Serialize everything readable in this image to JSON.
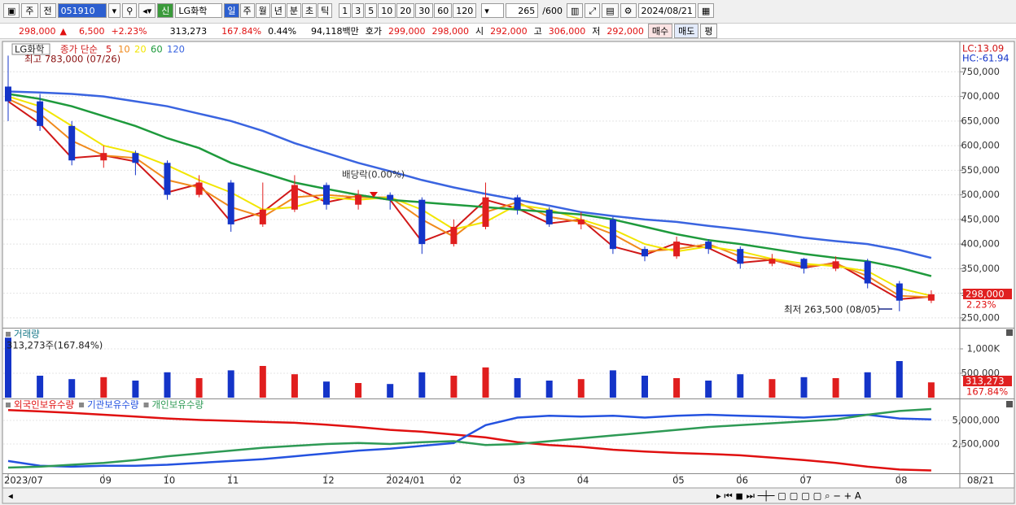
{
  "toolbar": {
    "market": "주",
    "prev": "전",
    "code": "051910",
    "name": "LG화학",
    "badge": "신",
    "periods": [
      "일",
      "주",
      "월",
      "년",
      "분",
      "초",
      "틱"
    ],
    "intervals": [
      "1",
      "3",
      "5",
      "10",
      "20",
      "30",
      "60",
      "120"
    ],
    "count": "265",
    "max": "/600",
    "date": "2024/08/21"
  },
  "quote": {
    "price": "298,000",
    "arrow": "▲",
    "change": "6,500",
    "change_pct": "+2.23%",
    "volume": "313,273",
    "volume_ratio": "167.84%",
    "turnover": "0.44%",
    "amount": "94,118백만",
    "bid_label": "호가",
    "ask": "299,000",
    "bid": "298,000",
    "open_label": "시",
    "open": "292,000",
    "high_label": "고",
    "high": "306,000",
    "low_label": "저",
    "low": "292,000",
    "buy": "매수",
    "sell": "매도",
    "avg": "평"
  },
  "chart_data": [
    {
      "type": "candlestick",
      "title": "LG화학",
      "legend_prefix": "종가 단순",
      "categories": [
        "2023/07",
        null,
        null,
        "09",
        null,
        "10",
        null,
        "11",
        null,
        null,
        "12",
        null,
        "2024/01",
        null,
        "02",
        null,
        "03",
        null,
        "04",
        null,
        null,
        "05",
        null,
        "06",
        null,
        "07",
        null,
        null,
        "08",
        null
      ],
      "open": [
        720000,
        690000,
        640000,
        570000,
        585000,
        565000,
        500000,
        525000,
        440000,
        470000,
        520000,
        480000,
        500000,
        490000,
        400000,
        435000,
        495000,
        470000,
        440000,
        450000,
        390000,
        375000,
        405000,
        390000,
        360000,
        370000,
        350000,
        365000,
        320000,
        285000
      ],
      "high": [
        783000,
        705000,
        650000,
        600000,
        590000,
        570000,
        540000,
        530000,
        525000,
        540000,
        525000,
        510000,
        505000,
        495000,
        450000,
        525000,
        500000,
        475000,
        465000,
        455000,
        395000,
        415000,
        410000,
        395000,
        380000,
        372000,
        375000,
        370000,
        325000,
        306000
      ],
      "low": [
        650000,
        630000,
        560000,
        555000,
        540000,
        490000,
        495000,
        425000,
        435000,
        465000,
        470000,
        470000,
        470000,
        380000,
        395000,
        430000,
        460000,
        435000,
        430000,
        380000,
        365000,
        370000,
        380000,
        350000,
        355000,
        340000,
        345000,
        310000,
        263500,
        280000
      ],
      "close": [
        690000,
        640000,
        570000,
        585000,
        565000,
        500000,
        525000,
        440000,
        470000,
        520000,
        480000,
        500000,
        490000,
        400000,
        435000,
        495000,
        470000,
        440000,
        450000,
        390000,
        375000,
        405000,
        390000,
        360000,
        370000,
        350000,
        365000,
        320000,
        285000,
        298000
      ],
      "up_color": "#e01e1e",
      "down_color": "#1434c8",
      "series": [
        {
          "name": "5",
          "color": "#d01818",
          "values": [
            690000,
            645000,
            575000,
            580000,
            568000,
            505000,
            522000,
            445000,
            465000,
            515000,
            485000,
            498000,
            490000,
            405000,
            430000,
            490000,
            472000,
            442000,
            450000,
            395000,
            378000,
            402000,
            392000,
            362000,
            368000,
            352000,
            362000,
            325000,
            288000,
            293000
          ]
        },
        {
          "name": "10",
          "color": "#f08a1c",
          "values": [
            695000,
            665000,
            610000,
            580000,
            575000,
            530000,
            515000,
            475000,
            455000,
            495000,
            500000,
            495000,
            495000,
            450000,
            415000,
            465000,
            485000,
            455000,
            445000,
            420000,
            385000,
            390000,
            400000,
            375000,
            368000,
            355000,
            360000,
            335000,
            295000,
            292000
          ]
        },
        {
          "name": "20",
          "color": "#f2e600",
          "values": [
            700000,
            680000,
            640000,
            600000,
            585000,
            560000,
            530000,
            505000,
            470000,
            475000,
            495000,
            490000,
            495000,
            470000,
            430000,
            445000,
            480000,
            470000,
            450000,
            430000,
            400000,
            385000,
            395000,
            385000,
            370000,
            360000,
            355000,
            345000,
            310000,
            295000
          ]
        },
        {
          "name": "60",
          "color": "#1e9a3c",
          "values": [
            705000,
            695000,
            680000,
            660000,
            640000,
            615000,
            595000,
            565000,
            545000,
            525000,
            512000,
            500000,
            490000,
            485000,
            480000,
            475000,
            470000,
            465000,
            460000,
            450000,
            435000,
            420000,
            408000,
            400000,
            390000,
            380000,
            372000,
            365000,
            352000,
            335000
          ]
        },
        {
          "name": "120",
          "color": "#3a64e0",
          "values": [
            710000,
            708000,
            705000,
            700000,
            690000,
            680000,
            665000,
            650000,
            630000,
            605000,
            585000,
            565000,
            548000,
            530000,
            515000,
            502000,
            490000,
            478000,
            465000,
            457000,
            450000,
            445000,
            437000,
            430000,
            422000,
            413000,
            406000,
            400000,
            388000,
            372000
          ]
        }
      ],
      "ylim": [
        230000,
        810000
      ],
      "yticks": [
        {
          "value": 750000,
          "label": "750,000"
        },
        {
          "value": 700000,
          "label": "700,000"
        },
        {
          "value": 650000,
          "label": "650,000"
        },
        {
          "value": 600000,
          "label": "600,000"
        },
        {
          "value": 550000,
          "label": "550,000"
        },
        {
          "value": 500000,
          "label": "500,000"
        },
        {
          "value": 450000,
          "label": "450,000"
        },
        {
          "value": 400000,
          "label": "400,000"
        },
        {
          "value": 350000,
          "label": "350,000"
        },
        {
          "value": 300000,
          "label": "300,000"
        },
        {
          "value": 250000,
          "label": "250,000"
        }
      ],
      "grid": true,
      "high_label": "최고 783,000 (07/26)",
      "dividend_label": "배당락(0.00%)",
      "low_label": "최저 263,500 (08/05)",
      "lc_label": "LC:13.09",
      "hc_label": "HC:-61.94",
      "last_price_label": "298,000",
      "last_change_label": "2.23%",
      "last_date_label": "08/21"
    },
    {
      "type": "bar",
      "title": "거래량",
      "subtitle": "313,273주(167.84%)",
      "values": [
        1230000,
        450000,
        380000,
        420000,
        350000,
        520000,
        400000,
        560000,
        650000,
        480000,
        330000,
        300000,
        280000,
        520000,
        450000,
        620000,
        400000,
        350000,
        380000,
        560000,
        450000,
        400000,
        350000,
        480000,
        380000,
        420000,
        400000,
        520000,
        750000,
        313273
      ],
      "ylim": [
        0,
        1400000
      ],
      "yticks": [
        {
          "value": 1000000,
          "label": "1,000K"
        },
        {
          "value": 500000,
          "label": "500,000"
        }
      ],
      "grid": true,
      "last_value_label": "313,273",
      "last_ratio_label": "167.84%"
    },
    {
      "type": "line",
      "series": [
        {
          "name": "외국인보유수량",
          "color": "#e01010",
          "values": [
            6100000,
            5950000,
            5800000,
            5600000,
            5400000,
            5200000,
            5050000,
            4950000,
            4850000,
            4750000,
            4550000,
            4300000,
            4000000,
            3800000,
            3500000,
            3200000,
            2700000,
            2400000,
            2200000,
            1900000,
            1700000,
            1550000,
            1450000,
            1300000,
            1050000,
            800000,
            500000,
            100000,
            -200000,
            -300000
          ]
        },
        {
          "name": "기관보유수량",
          "color": "#2452e0",
          "values": [
            700000,
            200000,
            100000,
            200000,
            200000,
            300000,
            500000,
            700000,
            900000,
            1200000,
            1500000,
            1800000,
            2000000,
            2300000,
            2600000,
            4500000,
            5300000,
            5500000,
            5400000,
            5500000,
            5300000,
            5500000,
            5600000,
            5500000,
            5400000,
            5300000,
            5500000,
            5600000,
            5200000,
            5100000
          ]
        },
        {
          "name": "개인보유수량",
          "color": "#2e9a55",
          "values": [
            0,
            100000,
            300000,
            500000,
            800000,
            1200000,
            1500000,
            1800000,
            2100000,
            2300000,
            2500000,
            2600000,
            2500000,
            2700000,
            2800000,
            2400000,
            2500000,
            2800000,
            3100000,
            3400000,
            3700000,
            4000000,
            4300000,
            4500000,
            4700000,
            4900000,
            5100000,
            5600000,
            6000000,
            6200000
          ]
        }
      ],
      "ylim": [
        -600000,
        7150000
      ],
      "yticks": [
        {
          "value": 2500000,
          "label": "2,500,000"
        },
        {
          "value": 5000000,
          "label": "5,000,000"
        }
      ],
      "grid": true
    }
  ]
}
